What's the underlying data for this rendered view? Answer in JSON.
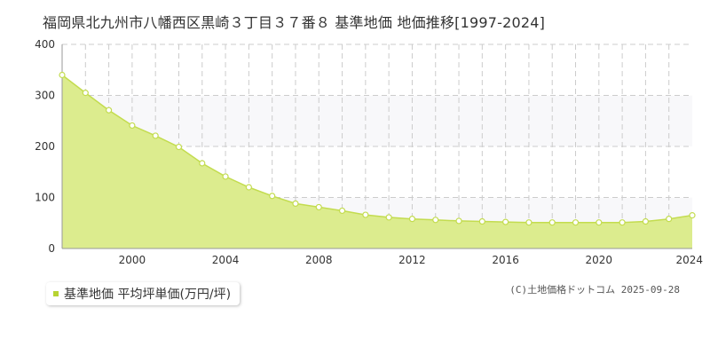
{
  "colors": {
    "fill": "#dcec8e",
    "line": "#c3dc4f",
    "grid": "#cccccc",
    "band": "#f8f8fa",
    "axis": "#999999",
    "legend_marker": "#b7d332"
  },
  "credit": "(C)土地価格ドットコム 2025-09-28",
  "chart_data": {
    "type": "area",
    "title": "福岡県北九州市八幡西区黒崎３丁目３７番８ 基準地価 地価推移[1997-2024]",
    "xlabel": "",
    "ylabel": "",
    "xlim": [
      1997,
      2024
    ],
    "ylim": [
      0,
      400
    ],
    "y_ticks": [
      0,
      100,
      200,
      300,
      400
    ],
    "x_ticks": [
      2000,
      2004,
      2008,
      2012,
      2016,
      2020,
      2024
    ],
    "grid": true,
    "legend_position": "bottom-left",
    "series": [
      {
        "name": "基準地価 平均坪単価(万円/坪)",
        "x": [
          1997,
          1998,
          1999,
          2000,
          2001,
          2002,
          2003,
          2004,
          2005,
          2006,
          2007,
          2008,
          2009,
          2010,
          2011,
          2012,
          2013,
          2014,
          2015,
          2016,
          2017,
          2018,
          2019,
          2020,
          2021,
          2022,
          2023,
          2024
        ],
        "values": [
          340,
          305,
          271,
          241,
          221,
          199,
          167,
          141,
          120,
          103,
          88,
          81,
          74,
          66,
          61,
          58,
          56,
          54,
          53,
          52,
          51,
          51,
          51,
          51,
          51,
          53,
          58,
          65
        ]
      }
    ]
  }
}
